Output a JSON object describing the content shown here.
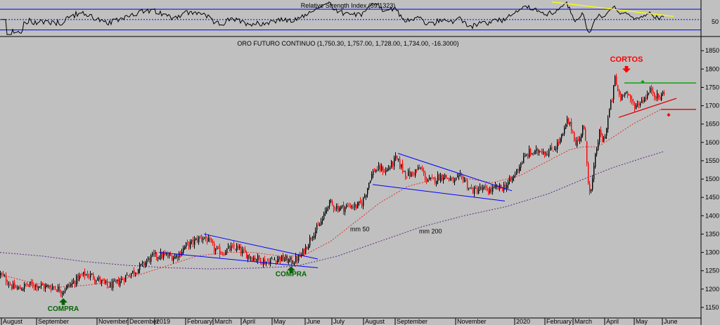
{
  "colors": {
    "background": "#c0c0c0",
    "candle_up": "#000000",
    "candle_down": "#ff0000",
    "ma50": "#e03030",
    "ma200": "#5a2d86",
    "trendline": "#0000ff",
    "resistance": "#00a000",
    "support": "#e00000",
    "rsi_trend": "#ffff00",
    "signal_buy": "#006400",
    "signal_sell": "#ff0000"
  },
  "chart_data": [
    {
      "type": "line",
      "title": "Relative Strength Index (59.1323)",
      "ylim": [
        20,
        85
      ],
      "reference_lines": [
        30,
        50,
        70
      ],
      "ytick_labels": [
        "50"
      ]
    },
    {
      "type": "candlestick",
      "title": "ORO FUTURO CONTINUO (1,750.30, 1,757.00, 1,728.00, 1,734.00, -16.3000)",
      "ylim": [
        1125,
        1860
      ],
      "yticks": [
        1150,
        1200,
        1250,
        1300,
        1350,
        1400,
        1450,
        1500,
        1550,
        1600,
        1650,
        1700,
        1750,
        1800,
        1850
      ],
      "xtick_labels": [
        "August",
        "September",
        "November",
        "December",
        "2019",
        "February",
        "March",
        "April",
        "May",
        "June",
        "July",
        "August",
        "September",
        "November",
        "2020",
        "February",
        "March",
        "April",
        "May",
        "June"
      ],
      "price_path": [
        [
          0,
          1240
        ],
        [
          8,
          1225
        ],
        [
          18,
          1205
        ],
        [
          27,
          1200
        ],
        [
          36,
          1210
        ],
        [
          46,
          1212
        ],
        [
          56,
          1210
        ],
        [
          65,
          1205
        ],
        [
          75,
          1207
        ],
        [
          88,
          1195
        ],
        [
          94,
          1205
        ],
        [
          102,
          1215
        ],
        [
          110,
          1230
        ],
        [
          120,
          1240
        ],
        [
          132,
          1235
        ],
        [
          142,
          1222
        ],
        [
          152,
          1208
        ],
        [
          162,
          1212
        ],
        [
          172,
          1225
        ],
        [
          182,
          1240
        ],
        [
          192,
          1250
        ],
        [
          202,
          1265
        ],
        [
          210,
          1280
        ],
        [
          218,
          1290
        ],
        [
          228,
          1292
        ],
        [
          238,
          1290
        ],
        [
          248,
          1288
        ],
        [
          256,
          1300
        ],
        [
          263,
          1318
        ],
        [
          272,
          1325
        ],
        [
          282,
          1338
        ],
        [
          290,
          1342
        ],
        [
          298,
          1325
        ],
        [
          306,
          1305
        ],
        [
          316,
          1300
        ],
        [
          326,
          1310
        ],
        [
          336,
          1312
        ],
        [
          346,
          1298
        ],
        [
          356,
          1288
        ],
        [
          366,
          1283
        ],
        [
          376,
          1275
        ],
        [
          386,
          1278
        ],
        [
          396,
          1285
        ],
        [
          406,
          1280
        ],
        [
          414,
          1275
        ],
        [
          420,
          1280
        ],
        [
          428,
          1292
        ],
        [
          436,
          1320
        ],
        [
          444,
          1352
        ],
        [
          452,
          1368
        ],
        [
          460,
          1398
        ],
        [
          466,
          1435
        ],
        [
          473,
          1428
        ],
        [
          480,
          1422
        ],
        [
          488,
          1422
        ],
        [
          498,
          1428
        ],
        [
          506,
          1425
        ],
        [
          514,
          1435
        ],
        [
          520,
          1465
        ],
        [
          526,
          1505
        ],
        [
          532,
          1525
        ],
        [
          540,
          1528
        ],
        [
          548,
          1522
        ],
        [
          556,
          1538
        ],
        [
          562,
          1555
        ],
        [
          568,
          1540
        ],
        [
          576,
          1515
        ],
        [
          584,
          1512
        ],
        [
          592,
          1525
        ],
        [
          598,
          1528
        ],
        [
          606,
          1498
        ],
        [
          614,
          1495
        ],
        [
          622,
          1505
        ],
        [
          630,
          1510
        ],
        [
          638,
          1500
        ],
        [
          646,
          1492
        ],
        [
          654,
          1505
        ],
        [
          660,
          1500
        ],
        [
          666,
          1475
        ],
        [
          674,
          1468
        ],
        [
          682,
          1473
        ],
        [
          690,
          1470
        ],
        [
          698,
          1470
        ],
        [
          706,
          1475
        ],
        [
          714,
          1477
        ],
        [
          720,
          1485
        ],
        [
          728,
          1500
        ],
        [
          736,
          1530
        ],
        [
          744,
          1555
        ],
        [
          752,
          1572
        ],
        [
          760,
          1570
        ],
        [
          768,
          1582
        ],
        [
          776,
          1572
        ],
        [
          784,
          1580
        ],
        [
          792,
          1595
        ],
        [
          800,
          1620
        ],
        [
          806,
          1658
        ],
        [
          812,
          1640
        ],
        [
          818,
          1600
        ],
        [
          824,
          1608
        ],
        [
          828,
          1650
        ],
        [
          831,
          1620
        ],
        [
          834,
          1545
        ],
        [
          837,
          1475
        ],
        [
          840,
          1468
        ],
        [
          843,
          1510
        ],
        [
          847,
          1575
        ],
        [
          852,
          1625
        ],
        [
          857,
          1600
        ],
        [
          862,
          1640
        ],
        [
          866,
          1688
        ],
        [
          870,
          1720
        ],
        [
          874,
          1775
        ],
        [
          878,
          1740
        ],
        [
          882,
          1720
        ],
        [
          888,
          1745
        ],
        [
          896,
          1712
        ],
        [
          904,
          1700
        ],
        [
          912,
          1715
        ],
        [
          920,
          1730
        ],
        [
          926,
          1745
        ],
        [
          932,
          1728
        ],
        [
          938,
          1720
        ],
        [
          944,
          1740
        ]
      ],
      "ma50_path": [
        [
          0,
          1240
        ],
        [
          40,
          1220
        ],
        [
          80,
          1205
        ],
        [
          120,
          1210
        ],
        [
          160,
          1220
        ],
        [
          200,
          1240
        ],
        [
          240,
          1265
        ],
        [
          280,
          1290
        ],
        [
          320,
          1300
        ],
        [
          360,
          1300
        ],
        [
          400,
          1290
        ],
        [
          430,
          1290
        ],
        [
          470,
          1330
        ],
        [
          510,
          1390
        ],
        [
          540,
          1435
        ],
        [
          580,
          1480
        ],
        [
          620,
          1500
        ],
        [
          660,
          1503
        ],
        [
          700,
          1490
        ],
        [
          740,
          1510
        ],
        [
          780,
          1550
        ],
        [
          810,
          1580
        ],
        [
          830,
          1588
        ],
        [
          850,
          1588
        ],
        [
          870,
          1612
        ],
        [
          900,
          1650
        ],
        [
          940,
          1690
        ]
      ],
      "ma200_path": [
        [
          0,
          1300
        ],
        [
          60,
          1290
        ],
        [
          120,
          1275
        ],
        [
          180,
          1265
        ],
        [
          240,
          1258
        ],
        [
          300,
          1255
        ],
        [
          360,
          1257
        ],
        [
          420,
          1262
        ],
        [
          480,
          1290
        ],
        [
          540,
          1330
        ],
        [
          600,
          1370
        ],
        [
          660,
          1400
        ],
        [
          720,
          1425
        ],
        [
          780,
          1460
        ],
        [
          830,
          1500
        ],
        [
          870,
          1530
        ],
        [
          910,
          1555
        ],
        [
          944,
          1575
        ]
      ],
      "annotations": [
        {
          "text": "mm 50",
          "x": 498,
          "y": 1358
        },
        {
          "text": "mm 200",
          "x": 596,
          "y": 1352
        }
      ],
      "trendlines": [
        {
          "color_key": "trendline",
          "from": [
            226,
            1300
          ],
          "to": [
            452,
            1258
          ]
        },
        {
          "color_key": "trendline",
          "from": [
            290,
            1350
          ],
          "to": [
            452,
            1282
          ]
        },
        {
          "color_key": "trendline",
          "from": [
            530,
            1485
          ],
          "to": [
            718,
            1440
          ]
        },
        {
          "color_key": "trendline",
          "from": [
            566,
            1570
          ],
          "to": [
            728,
            1468
          ]
        },
        {
          "color_key": "resistance",
          "from": [
            888,
            1762
          ],
          "to": [
            990,
            1762
          ]
        },
        {
          "color_key": "support",
          "from": [
            940,
            1690
          ],
          "to": [
            990,
            1690
          ]
        },
        {
          "color_key": "support",
          "from": [
            880,
            1668
          ],
          "to": [
            962,
            1720
          ]
        }
      ],
      "signals": [
        {
          "text": "COMPRA",
          "dir": "up",
          "x": 90,
          "arrow_y": 1175,
          "label_y": 1140,
          "color_key": "signal_buy"
        },
        {
          "text": "COMPRA",
          "dir": "up",
          "x": 414,
          "arrow_y": 1262,
          "label_y": 1235,
          "color_key": "signal_buy"
        },
        {
          "text": "CORTOS",
          "dir": "down",
          "x": 891,
          "arrow_y": 1790,
          "label_y": 1820,
          "color_key": "signal_sell"
        }
      ],
      "small_arrows": [
        {
          "dir": "up",
          "x": 914,
          "y": 1770,
          "color_key": "resistance"
        },
        {
          "dir": "down",
          "x": 951,
          "y": 1670,
          "color_key": "support"
        }
      ]
    }
  ]
}
